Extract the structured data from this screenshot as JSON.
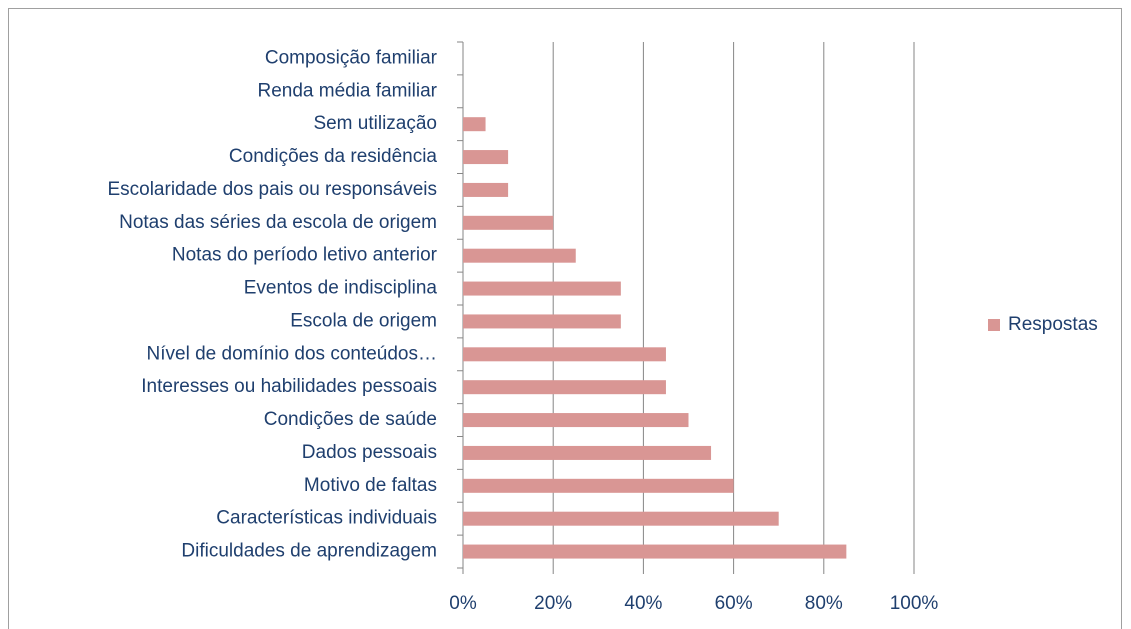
{
  "chart_data": {
    "type": "bar",
    "orientation": "horizontal",
    "categories": [
      "Composição familiar",
      "Renda média familiar",
      "Sem utilização",
      "Condições da residência",
      "Escolaridade dos pais ou responsáveis",
      "Notas das séries da escola de origem",
      "Notas do período letivo anterior",
      "Eventos de indisciplina",
      "Escola de origem",
      "Nível de domínio dos conteúdos…",
      "Interesses ou habilidades pessoais",
      "Condições de saúde",
      "Dados pessoais",
      "Motivo de faltas",
      "Características individuais",
      "Dificuldades de aprendizagem"
    ],
    "series": [
      {
        "name": "Respostas",
        "color": "#d99694",
        "values": [
          0,
          0,
          5,
          10,
          10,
          20,
          25,
          35,
          35,
          45,
          45,
          50,
          55,
          60,
          70,
          85
        ]
      }
    ],
    "xlim": [
      0,
      100
    ],
    "xticks": [
      {
        "value": 0,
        "label": "0%"
      },
      {
        "value": 20,
        "label": "20%"
      },
      {
        "value": 40,
        "label": "40%"
      },
      {
        "value": 60,
        "label": "60%"
      },
      {
        "value": 80,
        "label": "80%"
      },
      {
        "value": 100,
        "label": "100%"
      }
    ],
    "grid": true,
    "legend": "right"
  }
}
